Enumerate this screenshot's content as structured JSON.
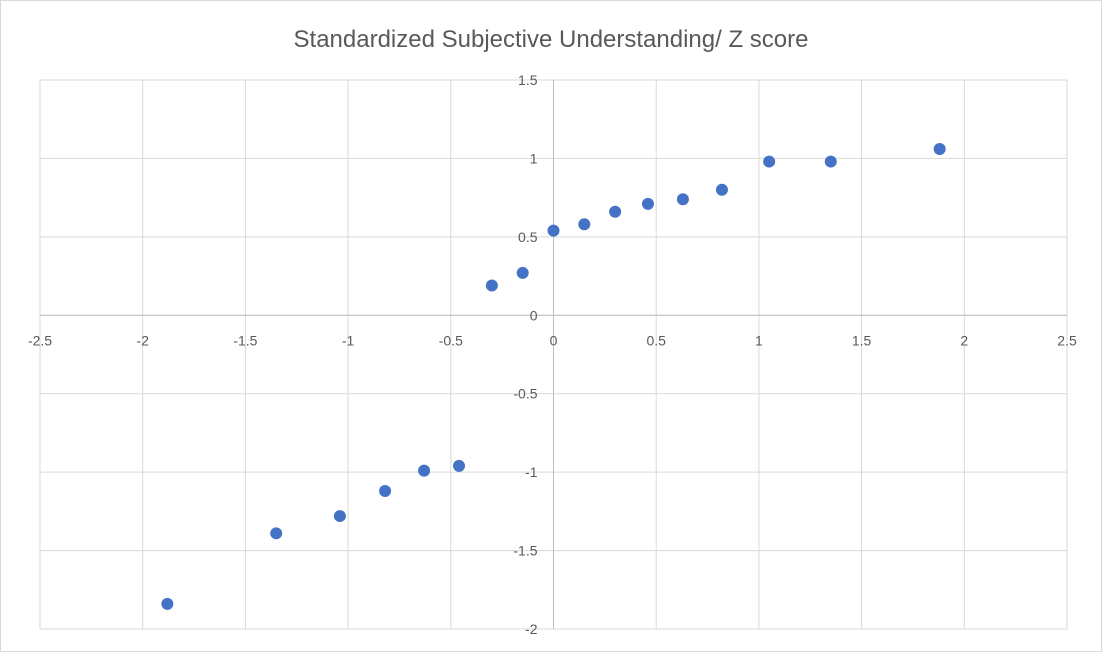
{
  "chart_data": {
    "type": "scatter",
    "title": "Standardized Subjective Understanding/ Z score",
    "xlabel": "",
    "ylabel": "",
    "xlim": [
      -2.5,
      2.5
    ],
    "ylim": [
      -2,
      1.5
    ],
    "x_ticks": [
      -2.5,
      -2,
      -1.5,
      -1,
      -0.5,
      0,
      0.5,
      1,
      1.5,
      2,
      2.5
    ],
    "y_ticks": [
      -2,
      -1.5,
      -1,
      -0.5,
      0,
      0.5,
      1,
      1.5
    ],
    "x_tick_labels": [
      "-2.5",
      "-2",
      "-1.5",
      "-1",
      "-0.5",
      "0",
      "0.5",
      "1",
      "1.5",
      "2",
      "2.5"
    ],
    "y_tick_labels": [
      "-2",
      "-1.5",
      "-1",
      "-0.5",
      "0",
      "0.5",
      "1",
      "1.5"
    ],
    "grid": true,
    "legend": "none",
    "marker_color": "#4472c4",
    "gridline_color": "#d9d9d9",
    "axis_color": "#bfbfbf",
    "series": [
      {
        "points": [
          {
            "x": -1.88,
            "y": -1.84
          },
          {
            "x": -1.35,
            "y": -1.39
          },
          {
            "x": -1.04,
            "y": -1.28
          },
          {
            "x": -0.82,
            "y": -1.12
          },
          {
            "x": -0.63,
            "y": -0.99
          },
          {
            "x": -0.46,
            "y": -0.96
          },
          {
            "x": -0.3,
            "y": 0.19
          },
          {
            "x": -0.15,
            "y": 0.27
          },
          {
            "x": 0.0,
            "y": 0.54
          },
          {
            "x": 0.15,
            "y": 0.58
          },
          {
            "x": 0.3,
            "y": 0.66
          },
          {
            "x": 0.46,
            "y": 0.71
          },
          {
            "x": 0.63,
            "y": 0.74
          },
          {
            "x": 0.82,
            "y": 0.8
          },
          {
            "x": 1.05,
            "y": 0.98
          },
          {
            "x": 1.35,
            "y": 0.98
          },
          {
            "x": 1.88,
            "y": 1.06
          }
        ]
      }
    ]
  }
}
